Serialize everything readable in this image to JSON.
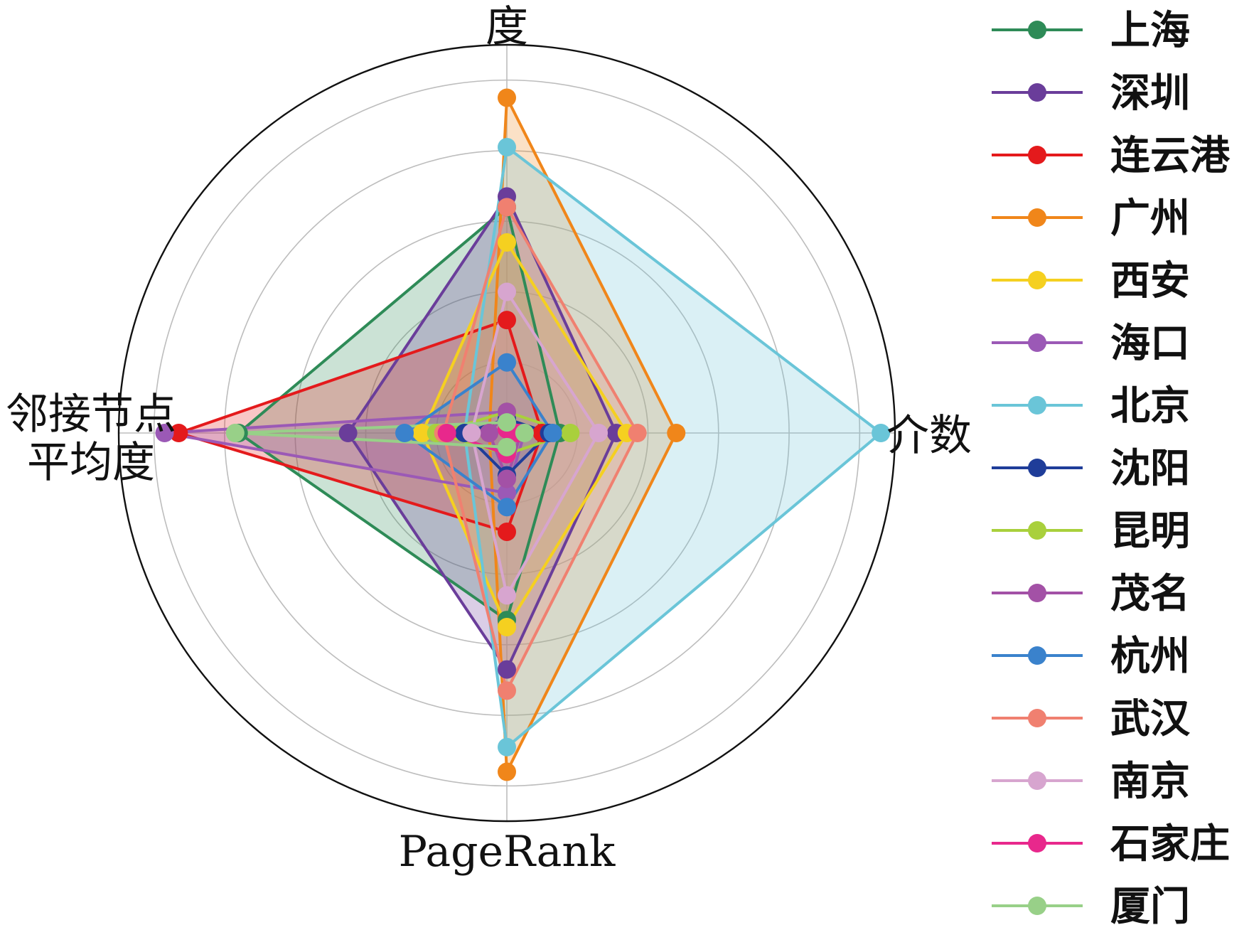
{
  "chart_data": {
    "type": "radar",
    "axes": [
      "度",
      "介数",
      "PageRank",
      "邻接节点平均度"
    ],
    "axis_label_lines": [
      [
        "度"
      ],
      [
        "介数"
      ],
      [
        "PageRank"
      ],
      [
        "邻接节点",
        "平均度"
      ]
    ],
    "rlim": [
      0,
      1.1
    ],
    "grid_rings": [
      0.2,
      0.4,
      0.6,
      0.8,
      1.0
    ],
    "grid": true,
    "legend_position": "right",
    "series": [
      {
        "name": "上海",
        "color": "#2e8b57",
        "values": [
          0.64,
          0.15,
          0.53,
          0.76
        ]
      },
      {
        "name": "深圳",
        "color": "#6a3d9a",
        "values": [
          0.67,
          0.31,
          0.67,
          0.45
        ]
      },
      {
        "name": "连云港",
        "color": "#e41a1c",
        "values": [
          0.32,
          0.1,
          0.28,
          0.93
        ]
      },
      {
        "name": "广州",
        "color": "#f0861a",
        "values": [
          0.95,
          0.48,
          0.96,
          0.05
        ]
      },
      {
        "name": "西安",
        "color": "#f5d020",
        "values": [
          0.54,
          0.34,
          0.55,
          0.24
        ]
      },
      {
        "name": "海口",
        "color": "#9b59b6",
        "values": [
          0.06,
          0.05,
          0.17,
          0.97
        ]
      },
      {
        "name": "北京",
        "color": "#6ac5d8",
        "values": [
          0.81,
          1.06,
          0.89,
          0.12
        ]
      },
      {
        "name": "沈阳",
        "color": "#1f3d99",
        "values": [
          0.04,
          0.12,
          0.12,
          0.12
        ]
      },
      {
        "name": "昆明",
        "color": "#a9d03c",
        "values": [
          0.06,
          0.18,
          0.06,
          0.2
        ]
      },
      {
        "name": "茂名",
        "color": "#a351a6",
        "values": [
          0.06,
          0.04,
          0.13,
          0.05
        ]
      },
      {
        "name": "杭州",
        "color": "#3a82cc",
        "values": [
          0.2,
          0.13,
          0.21,
          0.29
        ]
      },
      {
        "name": "武汉",
        "color": "#f08070",
        "values": [
          0.64,
          0.37,
          0.73,
          0.18
        ]
      },
      {
        "name": "南京",
        "color": "#d7a5cf",
        "values": [
          0.4,
          0.26,
          0.46,
          0.1
        ]
      },
      {
        "name": "石家庄",
        "color": "#e8288c",
        "values": [
          0.01,
          0.03,
          0.06,
          0.17
        ]
      },
      {
        "name": "厦门",
        "color": "#98d088",
        "values": [
          0.03,
          0.05,
          0.04,
          0.77
        ]
      }
    ]
  }
}
